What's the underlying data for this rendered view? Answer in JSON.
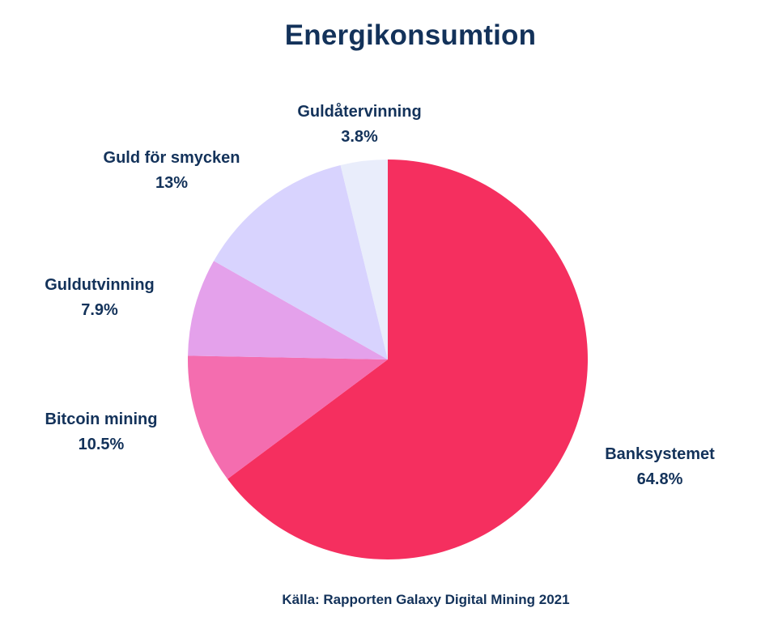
{
  "chart_data": {
    "type": "pie",
    "title": "Energikonsumtion",
    "slices": [
      {
        "label": "Banksystemet",
        "value": 64.8,
        "value_text": "64.8%",
        "color": "#f52f5f"
      },
      {
        "label": "Bitcoin mining",
        "value": 10.5,
        "value_text": "10.5%",
        "color": "#f46daf"
      },
      {
        "label": "Guldutvinning",
        "value": 7.9,
        "value_text": "7.9%",
        "color": "#e4a1eb"
      },
      {
        "label": "Guld för smycken",
        "value": 13,
        "value_text": "13%",
        "color": "#d8d3fe"
      },
      {
        "label": "Guldåtervinning",
        "value": 3.8,
        "value_text": "3.8%",
        "color": "#e9edfb"
      }
    ],
    "start_angle": "12 o'clock",
    "direction": "clockwise",
    "legend": "none",
    "source": "Källa: Rapporten Galaxy Digital Mining 2021"
  }
}
